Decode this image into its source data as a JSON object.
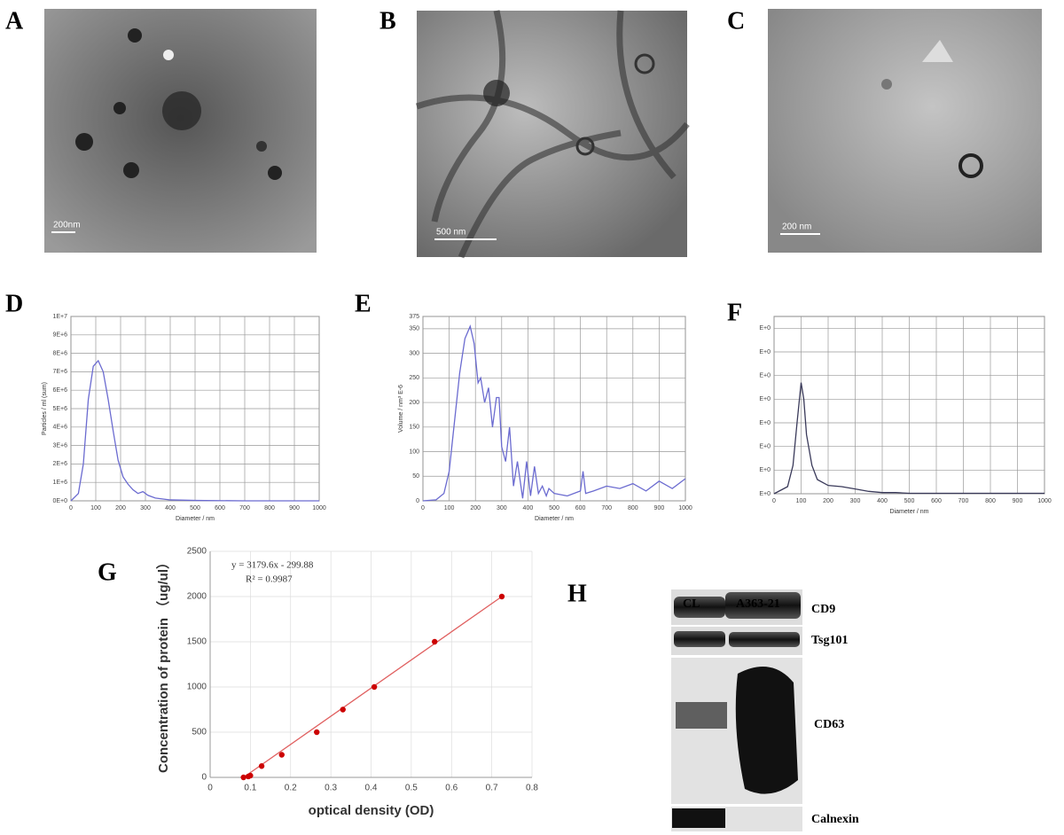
{
  "images": [
    {
      "panel": "A",
      "scale_bar": "200nm"
    },
    {
      "panel": "B",
      "scale_bar": "500 nm"
    },
    {
      "panel": "C",
      "scale_bar": "200 nm"
    }
  ],
  "chart_data": [
    {
      "type": "line",
      "panel": "D",
      "x_label": "Diameter / nm",
      "y_label": "Particles / ml (sum)",
      "color": "#6b6bd0",
      "grid": true,
      "x": [
        0,
        30,
        50,
        70,
        90,
        110,
        130,
        150,
        170,
        190,
        210,
        230,
        250,
        270,
        290,
        310,
        340,
        400,
        500,
        700,
        1000
      ],
      "values": [
        0,
        400000,
        2000000,
        5500000,
        7300000,
        7600000,
        7000000,
        5500000,
        3800000,
        2200000,
        1300000,
        900000,
        600000,
        400000,
        500000,
        300000,
        150000,
        50000,
        20000,
        0,
        0
      ],
      "xlim": [
        0,
        1000
      ],
      "xticks": [
        0,
        100,
        200,
        300,
        400,
        500,
        600,
        700,
        800,
        900,
        1000
      ],
      "ylim": [
        0,
        10000000
      ],
      "yticks": [
        {
          "value": 0,
          "label": "0E+0"
        },
        {
          "value": 1000000,
          "label": "1E+6"
        },
        {
          "value": 2000000,
          "label": "2E+6"
        },
        {
          "value": 3000000,
          "label": "3E+6"
        },
        {
          "value": 4000000,
          "label": "4E+6"
        },
        {
          "value": 5000000,
          "label": "5E+6"
        },
        {
          "value": 6000000,
          "label": "6E+6"
        },
        {
          "value": 7000000,
          "label": "7E+6"
        },
        {
          "value": 8000000,
          "label": "8E+6"
        },
        {
          "value": 9000000,
          "label": "9E+6"
        },
        {
          "value": 10000000,
          "label": "1E+7"
        }
      ]
    },
    {
      "type": "line",
      "panel": "E",
      "x_label": "Diameter / nm",
      "y_label": "Volume / nm³ E-6",
      "color": "#6b6bd0",
      "grid": true,
      "x": [
        0,
        50,
        80,
        100,
        120,
        140,
        160,
        180,
        195,
        210,
        220,
        235,
        250,
        265,
        280,
        290,
        300,
        315,
        330,
        345,
        360,
        380,
        395,
        410,
        425,
        440,
        455,
        470,
        480,
        500,
        550,
        600,
        610,
        620,
        650,
        700,
        750,
        800,
        850,
        900,
        950,
        1000
      ],
      "values": [
        0,
        2,
        15,
        60,
        160,
        260,
        330,
        355,
        320,
        240,
        250,
        200,
        230,
        150,
        210,
        210,
        110,
        80,
        150,
        30,
        80,
        5,
        80,
        10,
        70,
        15,
        30,
        10,
        25,
        15,
        10,
        20,
        60,
        15,
        20,
        30,
        25,
        35,
        20,
        40,
        25,
        45
      ],
      "xlim": [
        0,
        1000
      ],
      "xticks": [
        0,
        100,
        200,
        300,
        400,
        500,
        600,
        700,
        800,
        900,
        1000
      ],
      "ylim": [
        0,
        375
      ],
      "yticks": [
        0,
        50,
        100,
        150,
        200,
        250,
        300,
        350,
        375
      ]
    },
    {
      "type": "line",
      "panel": "F",
      "x_label": "Diameter / nm",
      "color": "#3a3a5a",
      "grid": true,
      "x": [
        0,
        50,
        70,
        85,
        100,
        110,
        120,
        140,
        160,
        200,
        250,
        300,
        350,
        400,
        450,
        500,
        1000
      ],
      "values": [
        0,
        0.3,
        1.2,
        3.0,
        4.7,
        4.0,
        2.5,
        1.2,
        0.6,
        0.35,
        0.3,
        0.2,
        0.1,
        0.05,
        0.05,
        0.02,
        0.02
      ],
      "xlim": [
        0,
        1000
      ],
      "xticks": [
        0,
        100,
        200,
        300,
        400,
        500,
        600,
        700,
        800,
        900,
        1000
      ],
      "ylim": [
        0,
        7.5
      ],
      "yticks": [
        {
          "value": 0,
          "label": "E+0"
        },
        {
          "value": 1,
          "label": "E+0"
        },
        {
          "value": 2,
          "label": "E+0"
        },
        {
          "value": 3,
          "label": "E+0"
        },
        {
          "value": 4,
          "label": "E+0"
        },
        {
          "value": 5,
          "label": "E+0"
        },
        {
          "value": 6,
          "label": "E+0"
        },
        {
          "value": 7,
          "label": "E+0"
        }
      ]
    },
    {
      "type": "scatter",
      "panel": "G",
      "x_label": "optical density (OD)",
      "y_label": "Concentration of protein （ug/ul）",
      "annotations": [
        "y = 3179.6x - 299.88",
        "R² = 0.9987"
      ],
      "color": "#cc0000",
      "grid": true,
      "x": [
        0.083,
        0.095,
        0.1,
        0.128,
        0.178,
        0.265,
        0.33,
        0.408,
        0.558,
        0.725
      ],
      "values": [
        0,
        10,
        20,
        125,
        250,
        500,
        750,
        1000,
        1500,
        2000
      ],
      "trendline": {
        "x": [
          0.083,
          0.725
        ],
        "values": [
          0,
          2000
        ],
        "color": "#e06060"
      },
      "xlim": [
        0,
        0.8
      ],
      "xticks": [
        0,
        0.1,
        0.2,
        0.3,
        0.4,
        0.5,
        0.6,
        0.7,
        0.8
      ],
      "ylim": [
        0,
        2500
      ],
      "yticks": [
        0,
        500,
        1000,
        1500,
        2000,
        2500
      ]
    }
  ],
  "blot": {
    "panel": "H",
    "lanes": [
      "CL",
      "A363-21"
    ],
    "proteins": [
      "CD9",
      "Tsg101",
      "CD63",
      "Calnexin"
    ]
  }
}
